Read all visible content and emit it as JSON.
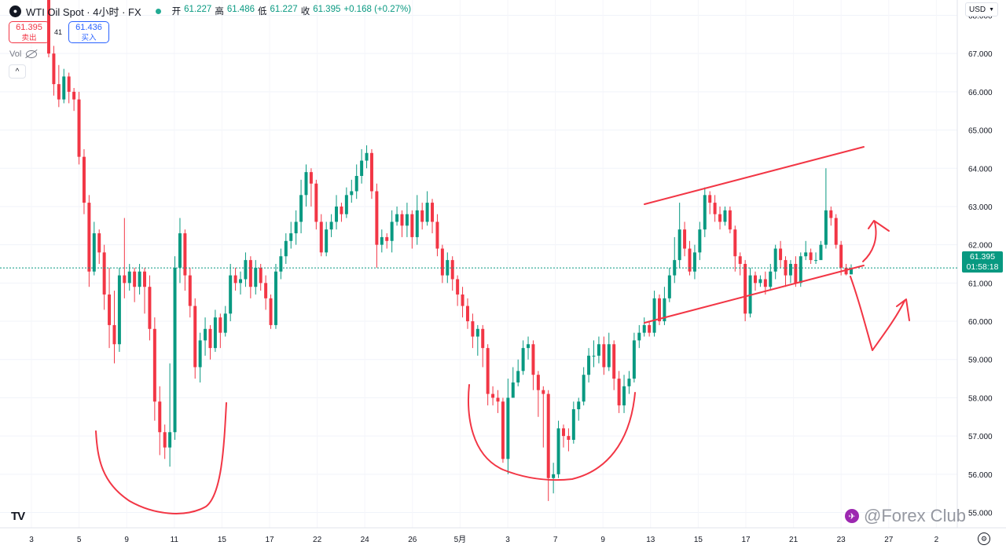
{
  "header": {
    "symbol_icon": "oil-drop-icon",
    "symbol": "WTI Oil Spot · 4小时 · FX",
    "ohlc": [
      {
        "label": "开",
        "value": "61.227"
      },
      {
        "label": "高",
        "value": "61.486"
      },
      {
        "label": "低",
        "value": "61.227"
      },
      {
        "label": "收",
        "value": "61.395"
      },
      {
        "label": "",
        "value": "+0.168 (+0.27%)"
      }
    ]
  },
  "trade": {
    "sell_price": "61.395",
    "sell_label": "卖出",
    "spread": "41",
    "buy_price": "61.436",
    "buy_label": "买入"
  },
  "vol_label": "Vol",
  "currency": "USD",
  "last_price": "61.395",
  "countdown": "01:58:18",
  "watermark": "@Forex Club",
  "logo_text": "TV",
  "colors": {
    "up": "#089981",
    "down": "#f23645",
    "drawing": "#f23645",
    "last_price_line": "#089981"
  },
  "chart_data": {
    "type": "candlestick",
    "title": "WTI Oil Spot · 4小时 · FX",
    "ylim": [
      54.6,
      68.4
    ],
    "y_ticks": [
      "55.000",
      "56.000",
      "57.000",
      "58.000",
      "59.000",
      "60.000",
      "61.000",
      "62.000",
      "63.000",
      "64.000",
      "65.000",
      "66.000",
      "67.000",
      "68.000"
    ],
    "x_ticks": [
      "3",
      "5",
      "9",
      "11",
      "15",
      "17",
      "22",
      "24",
      "26",
      "5月",
      "3",
      "7",
      "9",
      "13",
      "15",
      "17",
      "21",
      "23",
      "27",
      "2"
    ],
    "last_price": 61.395,
    "candles": [
      [
        68.5,
        67.0,
        68.6,
        66.9
      ],
      [
        67.0,
        66.2,
        67.2,
        65.9
      ],
      [
        66.2,
        65.8,
        66.7,
        65.6
      ],
      [
        65.8,
        66.4,
        66.6,
        65.7
      ],
      [
        66.4,
        66.0,
        66.5,
        65.7
      ],
      [
        66.0,
        65.8,
        66.1,
        65.5
      ],
      [
        65.8,
        64.3,
        66.0,
        64.1
      ],
      [
        64.3,
        63.1,
        64.5,
        62.8
      ],
      [
        63.1,
        61.3,
        63.3,
        60.9
      ],
      [
        61.3,
        62.3,
        62.6,
        61.2
      ],
      [
        62.3,
        61.8,
        62.4,
        61.5
      ],
      [
        61.8,
        60.7,
        62.0,
        60.3
      ],
      [
        60.7,
        59.9,
        61.4,
        59.3
      ],
      [
        59.9,
        59.4,
        60.8,
        58.9
      ],
      [
        59.4,
        61.2,
        61.4,
        59.2
      ],
      [
        61.2,
        61.0,
        62.7,
        60.6
      ],
      [
        61.0,
        61.3,
        61.5,
        60.8
      ],
      [
        61.3,
        60.9,
        61.4,
        60.5
      ],
      [
        60.9,
        61.3,
        61.5,
        60.7
      ],
      [
        61.3,
        60.9,
        61.4,
        60.2
      ],
      [
        60.9,
        59.8,
        61.2,
        59.5
      ],
      [
        59.8,
        57.9,
        60.1,
        57.4
      ],
      [
        57.9,
        57.1,
        58.3,
        56.5
      ],
      [
        57.1,
        56.7,
        57.3,
        56.4
      ],
      [
        56.7,
        57.1,
        58.9,
        56.2
      ],
      [
        57.1,
        61.4,
        61.7,
        56.9
      ],
      [
        61.4,
        62.3,
        62.7,
        61.0
      ],
      [
        62.3,
        61.2,
        62.4,
        60.8
      ],
      [
        61.2,
        60.4,
        61.4,
        60.1
      ],
      [
        60.4,
        58.8,
        60.6,
        58.5
      ],
      [
        58.8,
        59.5,
        59.7,
        58.4
      ],
      [
        59.5,
        59.8,
        60.1,
        59.1
      ],
      [
        59.8,
        59.3,
        59.9,
        59.0
      ],
      [
        59.3,
        60.1,
        60.3,
        59.2
      ],
      [
        60.1,
        59.7,
        60.2,
        59.3
      ],
      [
        59.7,
        60.2,
        60.4,
        59.6
      ],
      [
        60.2,
        61.2,
        61.5,
        60.0
      ],
      [
        61.2,
        61.0,
        61.4,
        60.8
      ],
      [
        61.0,
        61.1,
        61.3,
        60.7
      ],
      [
        61.1,
        61.6,
        61.8,
        60.9
      ],
      [
        61.6,
        60.9,
        61.7,
        60.6
      ],
      [
        60.9,
        61.4,
        61.6,
        60.7
      ],
      [
        61.4,
        61.0,
        61.5,
        60.8
      ],
      [
        61.0,
        60.6,
        61.2,
        60.3
      ],
      [
        60.6,
        59.9,
        60.7,
        59.8
      ],
      [
        59.9,
        61.3,
        61.5,
        59.8
      ],
      [
        61.3,
        61.7,
        61.9,
        61.1
      ],
      [
        61.7,
        62.1,
        62.3,
        61.5
      ],
      [
        62.1,
        62.3,
        62.6,
        61.9
      ],
      [
        62.3,
        62.6,
        62.9,
        62.0
      ],
      [
        62.6,
        63.3,
        63.7,
        62.3
      ],
      [
        63.3,
        63.9,
        64.1,
        63.0
      ],
      [
        63.9,
        63.6,
        64.0,
        63.0
      ],
      [
        63.6,
        62.6,
        63.7,
        62.4
      ],
      [
        62.6,
        61.8,
        62.8,
        61.7
      ],
      [
        61.8,
        62.4,
        62.6,
        61.7
      ],
      [
        62.4,
        62.6,
        62.8,
        62.2
      ],
      [
        62.6,
        63.0,
        63.3,
        62.4
      ],
      [
        63.0,
        62.8,
        63.1,
        62.6
      ],
      [
        62.8,
        63.3,
        63.5,
        62.7
      ],
      [
        63.3,
        63.4,
        63.7,
        63.1
      ],
      [
        63.4,
        63.8,
        64.1,
        63.2
      ],
      [
        63.8,
        64.2,
        64.5,
        63.6
      ],
      [
        64.2,
        64.4,
        64.6,
        64.0
      ],
      [
        64.4,
        63.4,
        64.5,
        63.2
      ],
      [
        63.4,
        62.0,
        63.6,
        61.4
      ],
      [
        62.0,
        62.2,
        62.4,
        61.8
      ],
      [
        62.2,
        62.1,
        62.3,
        61.9
      ],
      [
        62.1,
        62.6,
        62.9,
        61.8
      ],
      [
        62.6,
        62.8,
        63.0,
        62.5
      ],
      [
        62.8,
        62.5,
        62.9,
        62.2
      ],
      [
        62.5,
        62.8,
        63.1,
        62.2
      ],
      [
        62.8,
        62.2,
        62.9,
        61.9
      ],
      [
        62.2,
        62.9,
        63.3,
        62.0
      ],
      [
        62.9,
        62.6,
        63.1,
        62.4
      ],
      [
        62.6,
        63.1,
        63.4,
        62.5
      ],
      [
        63.1,
        62.6,
        63.2,
        62.3
      ],
      [
        62.6,
        61.9,
        62.8,
        61.7
      ],
      [
        61.9,
        61.2,
        62.0,
        61.0
      ],
      [
        61.2,
        61.6,
        61.8,
        61.0
      ],
      [
        61.6,
        61.1,
        61.7,
        60.8
      ],
      [
        61.1,
        60.7,
        61.2,
        60.4
      ],
      [
        60.7,
        60.4,
        60.9,
        60.1
      ],
      [
        60.4,
        60.0,
        60.6,
        59.8
      ],
      [
        60.0,
        59.6,
        60.2,
        59.3
      ],
      [
        59.6,
        59.8,
        59.9,
        59.1
      ],
      [
        59.8,
        59.3,
        59.9,
        58.8
      ],
      [
        59.3,
        58.1,
        59.4,
        57.8
      ],
      [
        58.1,
        58.0,
        58.3,
        57.8
      ],
      [
        58.0,
        57.9,
        58.2,
        57.6
      ],
      [
        57.9,
        56.4,
        58.0,
        56.3
      ],
      [
        56.4,
        58.0,
        58.5,
        56.0
      ],
      [
        58.0,
        58.4,
        58.8,
        58.0
      ],
      [
        58.4,
        58.7,
        59.0,
        58.3
      ],
      [
        58.7,
        59.3,
        59.5,
        58.6
      ],
      [
        59.3,
        59.4,
        59.6,
        59.0
      ],
      [
        59.4,
        58.6,
        59.5,
        58.2
      ],
      [
        58.6,
        58.2,
        58.7,
        57.5
      ],
      [
        58.2,
        58.1,
        58.3,
        56.7
      ],
      [
        58.1,
        55.9,
        58.2,
        55.3
      ],
      [
        55.9,
        56.0,
        56.3,
        55.5
      ],
      [
        56.0,
        57.2,
        57.4,
        55.9
      ],
      [
        57.2,
        57.0,
        57.3,
        56.7
      ],
      [
        57.0,
        56.9,
        57.2,
        56.6
      ],
      [
        56.9,
        57.7,
        57.9,
        56.8
      ],
      [
        57.7,
        57.9,
        58.0,
        57.4
      ],
      [
        57.9,
        58.6,
        58.8,
        57.8
      ],
      [
        58.6,
        59.1,
        59.3,
        58.4
      ],
      [
        59.1,
        59.1,
        59.5,
        58.8
      ],
      [
        59.1,
        59.4,
        59.6,
        58.9
      ],
      [
        59.4,
        58.8,
        59.6,
        58.6
      ],
      [
        58.8,
        59.4,
        59.7,
        58.7
      ],
      [
        59.4,
        58.5,
        59.5,
        58.2
      ],
      [
        58.5,
        57.8,
        58.7,
        57.6
      ],
      [
        57.8,
        58.3,
        58.6,
        57.6
      ],
      [
        58.3,
        58.5,
        58.7,
        58.1
      ],
      [
        58.5,
        59.5,
        59.7,
        58.4
      ],
      [
        59.5,
        59.7,
        59.9,
        59.3
      ],
      [
        59.7,
        59.9,
        60.1,
        59.6
      ],
      [
        59.9,
        59.7,
        60.0,
        59.6
      ],
      [
        59.7,
        60.6,
        60.8,
        59.6
      ],
      [
        60.6,
        60.0,
        60.7,
        59.9
      ],
      [
        60.0,
        60.6,
        60.9,
        59.9
      ],
      [
        60.6,
        61.2,
        61.4,
        60.5
      ],
      [
        61.2,
        61.6,
        62.2,
        61.0
      ],
      [
        61.6,
        62.4,
        63.1,
        61.4
      ],
      [
        62.4,
        61.9,
        62.6,
        61.7
      ],
      [
        61.9,
        61.3,
        62.1,
        61.2
      ],
      [
        61.3,
        61.8,
        62.0,
        61.1
      ],
      [
        61.8,
        62.4,
        62.6,
        61.6
      ],
      [
        62.4,
        63.3,
        63.5,
        62.2
      ],
      [
        63.3,
        63.1,
        63.4,
        62.8
      ],
      [
        63.1,
        62.8,
        63.3,
        62.6
      ],
      [
        62.8,
        62.6,
        63.0,
        62.4
      ],
      [
        62.6,
        62.9,
        63.0,
        62.5
      ],
      [
        62.9,
        62.4,
        63.0,
        62.3
      ],
      [
        62.4,
        61.7,
        62.5,
        61.3
      ],
      [
        61.7,
        61.5,
        61.8,
        61.2
      ],
      [
        61.5,
        60.2,
        61.6,
        60.0
      ],
      [
        60.2,
        61.2,
        61.4,
        60.1
      ],
      [
        61.2,
        61.0,
        61.3,
        60.8
      ],
      [
        61.0,
        61.1,
        61.2,
        60.9
      ],
      [
        61.1,
        60.9,
        61.3,
        60.7
      ],
      [
        60.9,
        61.3,
        61.5,
        60.8
      ],
      [
        61.3,
        61.9,
        62.0,
        61.1
      ],
      [
        61.9,
        61.6,
        62.1,
        61.4
      ],
      [
        61.6,
        61.2,
        61.7,
        60.9
      ],
      [
        61.2,
        61.5,
        61.6,
        61.0
      ],
      [
        61.5,
        61.0,
        61.7,
        60.9
      ],
      [
        61.0,
        61.7,
        61.8,
        60.9
      ],
      [
        61.7,
        61.8,
        62.1,
        61.6
      ],
      [
        61.8,
        61.6,
        61.9,
        61.5
      ],
      [
        61.6,
        61.6,
        61.8,
        61.5
      ],
      [
        61.6,
        62.0,
        62.1,
        61.8
      ],
      [
        62.0,
        62.9,
        64.0,
        61.9
      ],
      [
        62.9,
        62.7,
        63.0,
        62.5
      ],
      [
        62.7,
        62.0,
        62.8,
        61.9
      ],
      [
        62.0,
        61.4,
        62.1,
        61.2
      ],
      [
        61.4,
        61.227,
        61.5,
        61.2
      ],
      [
        61.227,
        61.395,
        61.486,
        61.227
      ]
    ]
  }
}
